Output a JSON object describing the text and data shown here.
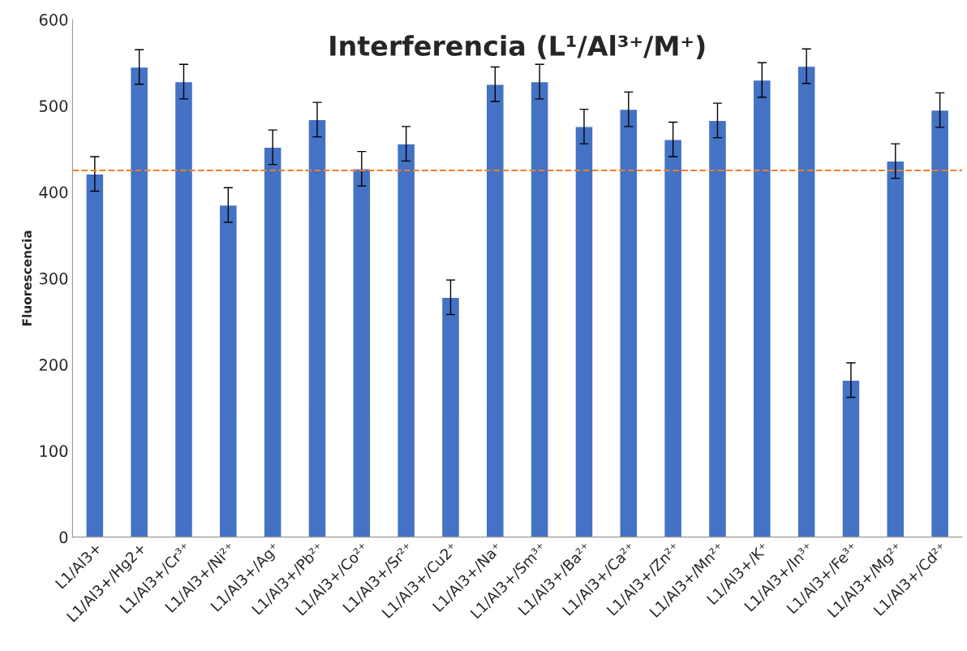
{
  "chart_data": {
    "type": "bar",
    "title": "Interferencia (L¹/Al³⁺/M⁺)",
    "ylabel": "Fluorescencia",
    "categories": [
      "L1/Al3+",
      "L1/Al3+/Hg2+",
      "L1/Al3+/Cr³⁺",
      "L1/Al3+/Ni²⁺",
      "L1/Al3+/Ag⁺",
      "L1/Al3+/Pb²⁺",
      "L1/Al3+/Co²⁺",
      "L1/Al3+/Sr²⁺",
      "L1/Al3+/Cu2⁺",
      "L1/Al3+/Na⁺",
      "L1/Al3+/Sm³⁺",
      "L1/Al3+/Ba²⁺",
      "L1/Al3+/Ca²⁺",
      "L1/Al3+/Zn²⁺",
      "L1/Al3+/Mn²⁺",
      "L1/Al3+/K⁺",
      "L1/Al3+/In³⁺",
      "L1/Al3+/Fe³⁺",
      "L1/Al3+/Mg²⁺",
      "L1/Al3+/Cd²⁺"
    ],
    "values": [
      421,
      545,
      528,
      385,
      452,
      484,
      427,
      456,
      278,
      525,
      528,
      476,
      496,
      461,
      483,
      530,
      546,
      182,
      436,
      495
    ],
    "errors": [
      20,
      20,
      20,
      20,
      20,
      20,
      20,
      20,
      20,
      20,
      20,
      20,
      20,
      20,
      20,
      20,
      20,
      20,
      20,
      20
    ],
    "color": "#4472c4",
    "ylim": [
      0,
      600
    ],
    "yticks": [
      0,
      100,
      200,
      300,
      400,
      500,
      600
    ],
    "grid": false,
    "ref_lines": [
      {
        "axis": "y",
        "value": 425,
        "color": "#ed7d31",
        "line_style": "dashed"
      }
    ]
  }
}
